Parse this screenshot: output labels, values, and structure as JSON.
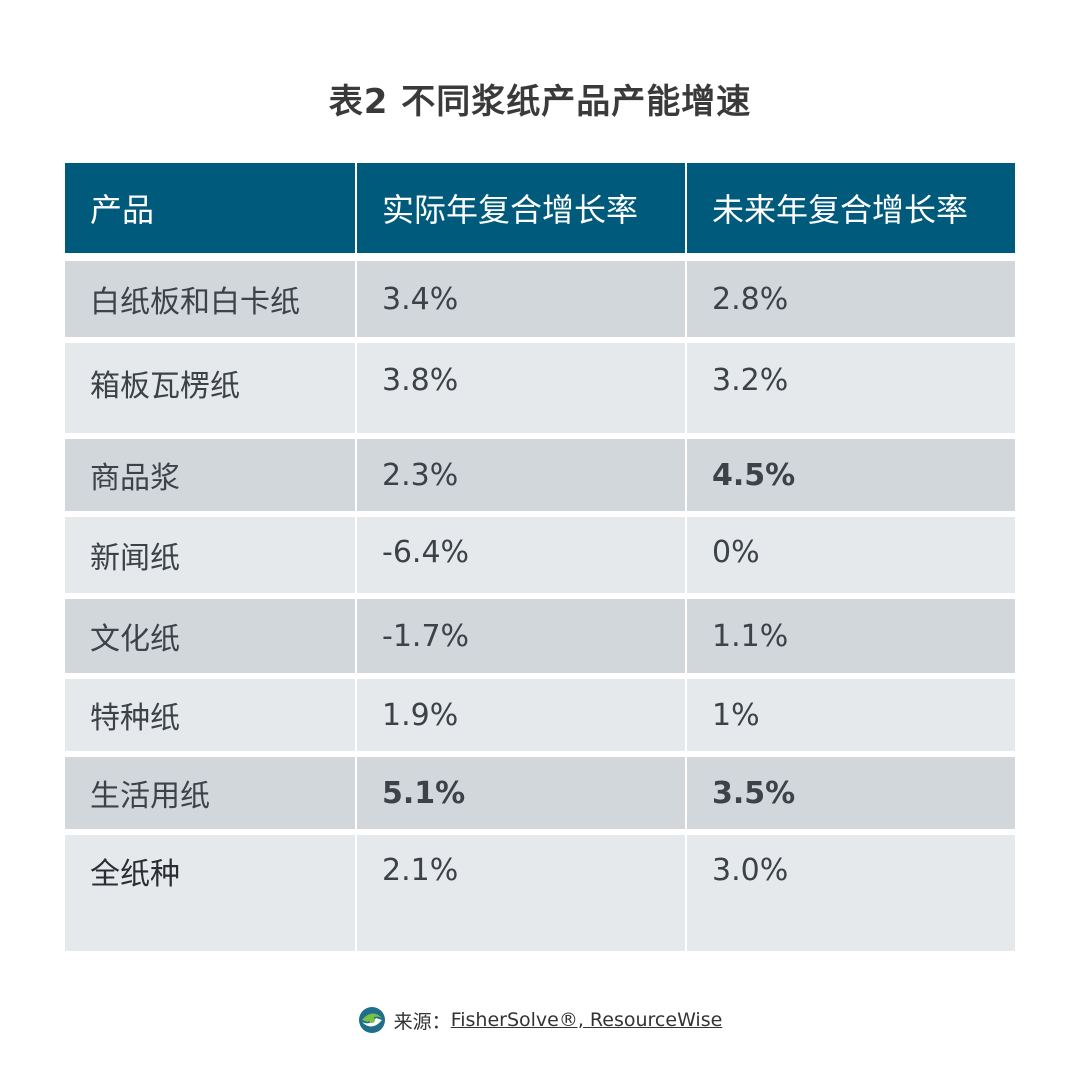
{
  "title": "表2  不同浆纸产品产能增速",
  "table": {
    "headers": [
      "产品",
      "实际年复合增长率",
      "未来年复合增长率"
    ],
    "rows": [
      {
        "product": "白纸板和白卡纸",
        "actual": "3.4%",
        "future": "2.8%"
      },
      {
        "product": "箱板瓦楞纸",
        "actual": "3.8%",
        "future": "3.2%"
      },
      {
        "product": "商品浆",
        "actual": "2.3%",
        "future": "4.5%"
      },
      {
        "product": "新闻纸",
        "actual": "-6.4%",
        "future": "0%"
      },
      {
        "product": "文化纸",
        "actual": "-1.7%",
        "future": "1.1%"
      },
      {
        "product": "特种纸",
        "actual": "1.9%",
        "future": "1%"
      },
      {
        "product": "生活用纸",
        "actual": "5.1%",
        "future": "3.5%"
      },
      {
        "product": "全纸种",
        "actual": "2.1%",
        "future": "3.0%"
      }
    ]
  },
  "source": {
    "label": "来源：",
    "text": "FisherSolve®, ResourceWise",
    "icon": "fishersolve-logo-icon"
  },
  "colors": {
    "header_bg": "#005a7c",
    "row_dark": "#d2d7dc",
    "row_light": "#e6e9ec"
  }
}
